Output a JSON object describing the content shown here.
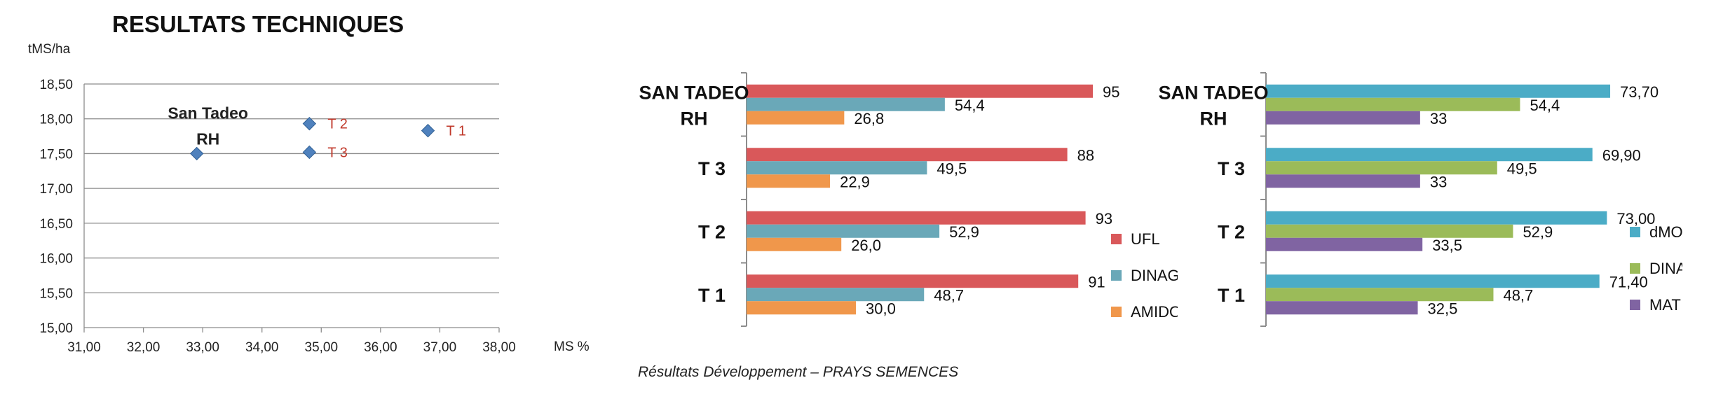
{
  "page": {
    "title": "RESULTATS TECHNIQUES",
    "caption": "Résultats Développement – PRAYS SEMENCES"
  },
  "chart_data": [
    {
      "type": "scatter",
      "title": "",
      "xlabel": "MS %",
      "ylabel": "tMS/ha",
      "xlim": [
        31,
        38
      ],
      "ylim": [
        15,
        18.5
      ],
      "xticks": [
        31,
        32,
        33,
        34,
        35,
        36,
        37,
        38
      ],
      "yticks": [
        15,
        15.5,
        16,
        16.5,
        17,
        17.5,
        18,
        18.5
      ],
      "grid": "horizontal",
      "marker_color": "#4f81bd",
      "points": [
        {
          "label_lines": [
            "San Tadeo",
            "RH"
          ],
          "x": 32.9,
          "y": 17.5,
          "label_color": "#222222"
        },
        {
          "label_lines": [
            "T 2"
          ],
          "x": 34.8,
          "y": 17.93,
          "label_color": "#c0392b"
        },
        {
          "label_lines": [
            "T 3"
          ],
          "x": 34.8,
          "y": 17.52,
          "label_color": "#c0392b"
        },
        {
          "label_lines": [
            "T 1"
          ],
          "x": 36.8,
          "y": 17.83,
          "label_color": "#c0392b"
        }
      ]
    },
    {
      "type": "bar",
      "orientation": "horizontal",
      "categories": [
        [
          "SAN TADEO",
          "RH"
        ],
        [
          "T 3"
        ],
        [
          "T 2"
        ],
        [
          "T 1"
        ]
      ],
      "xlim": [
        0,
        100
      ],
      "series": [
        {
          "name": "UFL",
          "color": "#d9585a",
          "values": [
            95,
            88,
            93,
            91
          ],
          "labels": [
            "95",
            "88",
            "93",
            "91"
          ]
        },
        {
          "name": "DINAG",
          "color": "#6aa8b8",
          "values": [
            54.4,
            49.5,
            52.9,
            48.7
          ],
          "labels": [
            "54,4",
            "49,5",
            "52,9",
            "48,7"
          ]
        },
        {
          "name": "AMIDON",
          "color": "#f0974b",
          "values": [
            26.8,
            22.9,
            26.0,
            30.0
          ],
          "labels": [
            "26,8",
            "22,9",
            "26,0",
            "30,0"
          ]
        }
      ],
      "legend": "right"
    },
    {
      "type": "bar",
      "orientation": "horizontal",
      "categories": [
        [
          "SAN TADEO",
          "RH"
        ],
        [
          "T 3"
        ],
        [
          "T 2"
        ],
        [
          "T 1"
        ]
      ],
      "xlim": [
        0,
        80
      ],
      "series": [
        {
          "name": "dMO",
          "color": "#4bacc6",
          "values": [
            73.7,
            69.9,
            73.0,
            71.4
          ],
          "labels": [
            "73,70",
            "69,90",
            "73,00",
            "71,40"
          ]
        },
        {
          "name": "DINAG",
          "color": "#9bbb59",
          "values": [
            54.4,
            49.5,
            52.9,
            48.7
          ],
          "labels": [
            "54,4",
            "49,5",
            "52,9",
            "48,7"
          ]
        },
        {
          "name": "MAT",
          "color": "#8064a2",
          "values": [
            33,
            33,
            33.5,
            32.5
          ],
          "labels": [
            "33",
            "33",
            "33,5",
            "32,5"
          ]
        }
      ],
      "legend": "right"
    }
  ]
}
